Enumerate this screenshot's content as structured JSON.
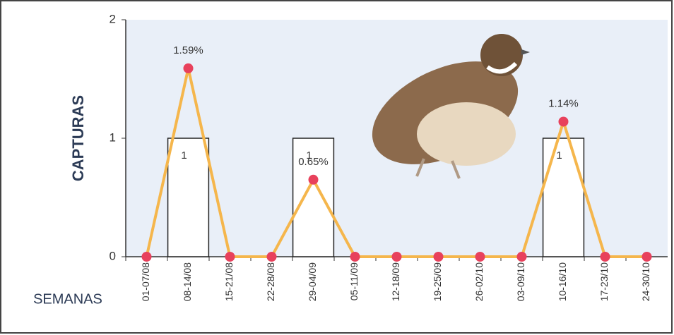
{
  "chart_data": {
    "type": "bar",
    "ylabel": "CAPTURAS",
    "xlabel": "SEMANAS",
    "categories": [
      "01-07/08",
      "08-14/08",
      "15-21/08",
      "22-28/08",
      "29-04/09",
      "05-11/09",
      "12-18/09",
      "19-25/09",
      "26-02/10",
      "03-09/10",
      "10-16/10",
      "17-23/10",
      "24-30/10"
    ],
    "series": [
      {
        "type": "bar",
        "color": "#ffffff",
        "values": [
          0,
          1,
          0,
          0,
          1,
          0,
          0,
          0,
          0,
          0,
          1,
          0,
          0
        ]
      },
      {
        "type": "line",
        "color": "#f5b64c",
        "marker_color": "#e8415c",
        "values": [
          0,
          1.59,
          0,
          0,
          0.65,
          0,
          0,
          0,
          0,
          0,
          1.14,
          0,
          0
        ],
        "value_labels": [
          null,
          "1.59%",
          null,
          null,
          "0.65%",
          null,
          null,
          null,
          null,
          null,
          "1.14%",
          null,
          null
        ]
      }
    ],
    "ylim": [
      0,
      2
    ],
    "yticks": [
      0,
      1,
      2
    ],
    "background": "#e9eff8"
  }
}
